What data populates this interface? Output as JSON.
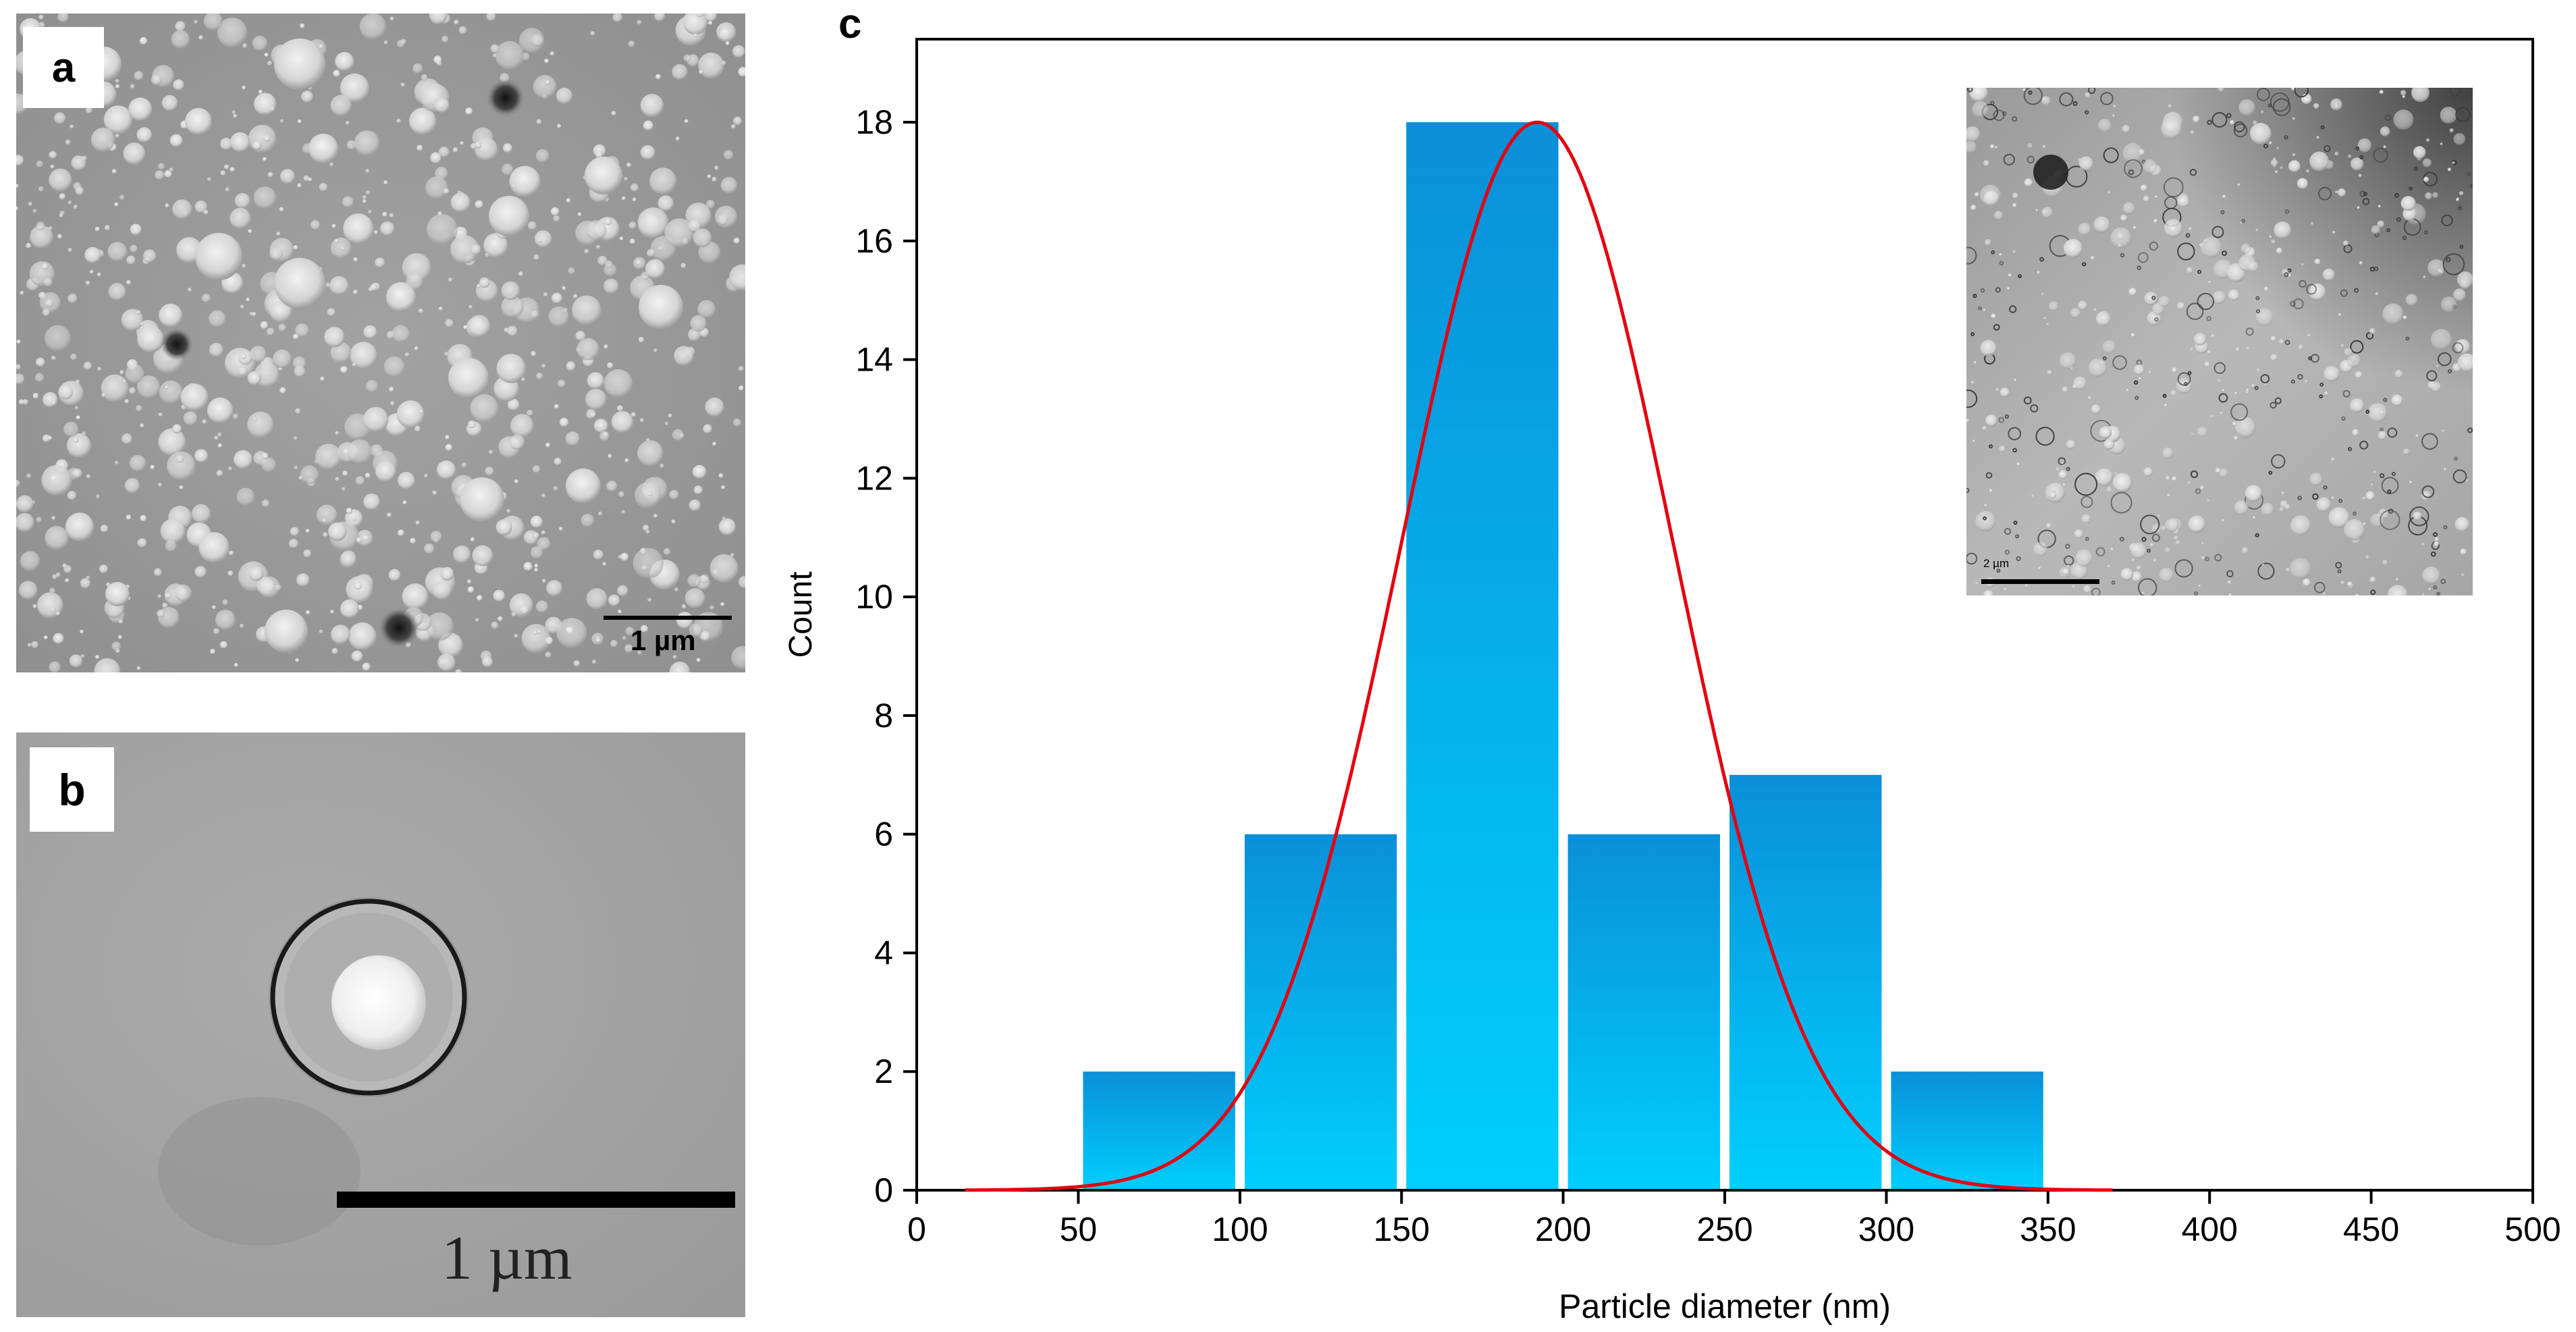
{
  "panels": {
    "a": {
      "label": "a",
      "scale_bar": "1 µm"
    },
    "b": {
      "label": "b",
      "scale_bar": "1 µm"
    },
    "c": {
      "label": "c",
      "inset_scale_bar": "2 µm"
    }
  },
  "colors": {
    "bar_top": "#0a8fd8",
    "bar_bottom": "#00cfff",
    "fit_curve": "#e3000f",
    "axis": "#000000"
  },
  "chart_data": {
    "type": "bar",
    "title": "",
    "xlabel": "Particle diameter (nm)",
    "ylabel": "Count",
    "xlim": [
      0,
      500
    ],
    "ylim": [
      0,
      19.4
    ],
    "xticks": [
      0,
      50,
      100,
      150,
      200,
      250,
      300,
      350,
      400,
      450,
      500
    ],
    "yticks": [
      0,
      2,
      4,
      6,
      8,
      10,
      12,
      14,
      16,
      18
    ],
    "bins": [
      {
        "start": 50,
        "end": 100,
        "count": 2
      },
      {
        "start": 100,
        "end": 150,
        "count": 6
      },
      {
        "start": 150,
        "end": 200,
        "count": 18
      },
      {
        "start": 200,
        "end": 250,
        "count": 6
      },
      {
        "start": 250,
        "end": 300,
        "count": 7
      },
      {
        "start": 300,
        "end": 350,
        "count": 2
      }
    ],
    "fit": {
      "type": "gaussian",
      "mean": 192,
      "sd": 42,
      "amplitude": 18,
      "x_range": [
        15,
        370
      ]
    }
  }
}
